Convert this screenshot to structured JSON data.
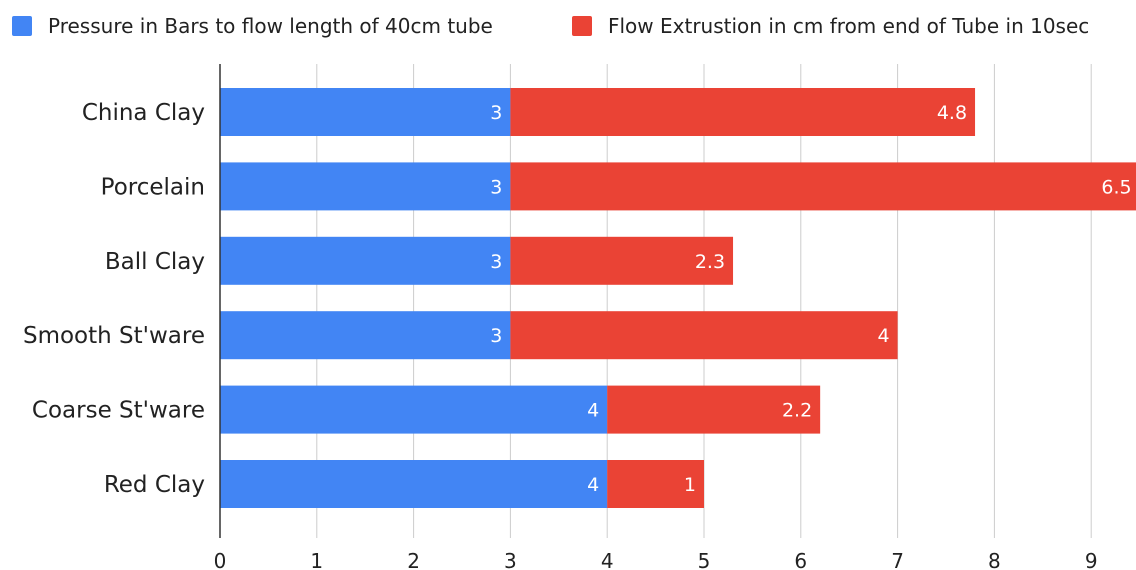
{
  "chart_data": {
    "type": "bar",
    "orientation": "horizontal",
    "stacked": true,
    "categories": [
      "China Clay",
      "Porcelain",
      "Ball Clay",
      "Smooth St'ware",
      "Coarse St'ware",
      "Red Clay"
    ],
    "series": [
      {
        "name": "Pressure in Bars to flow length of 40cm tube",
        "color": "#4285f4",
        "values": [
          3,
          3,
          3,
          3,
          4,
          4
        ]
      },
      {
        "name": "Flow Extrustion in cm from end of Tube in 10sec",
        "color": "#ea4335",
        "values": [
          4.8,
          6.5,
          2.3,
          4,
          2.2,
          1
        ]
      }
    ],
    "data_labels": [
      [
        "3",
        "3",
        "3",
        "3",
        "4",
        "4"
      ],
      [
        "4.8",
        "6.5",
        "2.3",
        "4",
        "2.2",
        "1"
      ]
    ],
    "x_ticks": [
      "0",
      "1",
      "2",
      "3",
      "4",
      "5",
      "6",
      "7",
      "8",
      "9"
    ],
    "xlim": [
      0,
      9.5
    ],
    "grid": true,
    "legend_position": "top"
  }
}
